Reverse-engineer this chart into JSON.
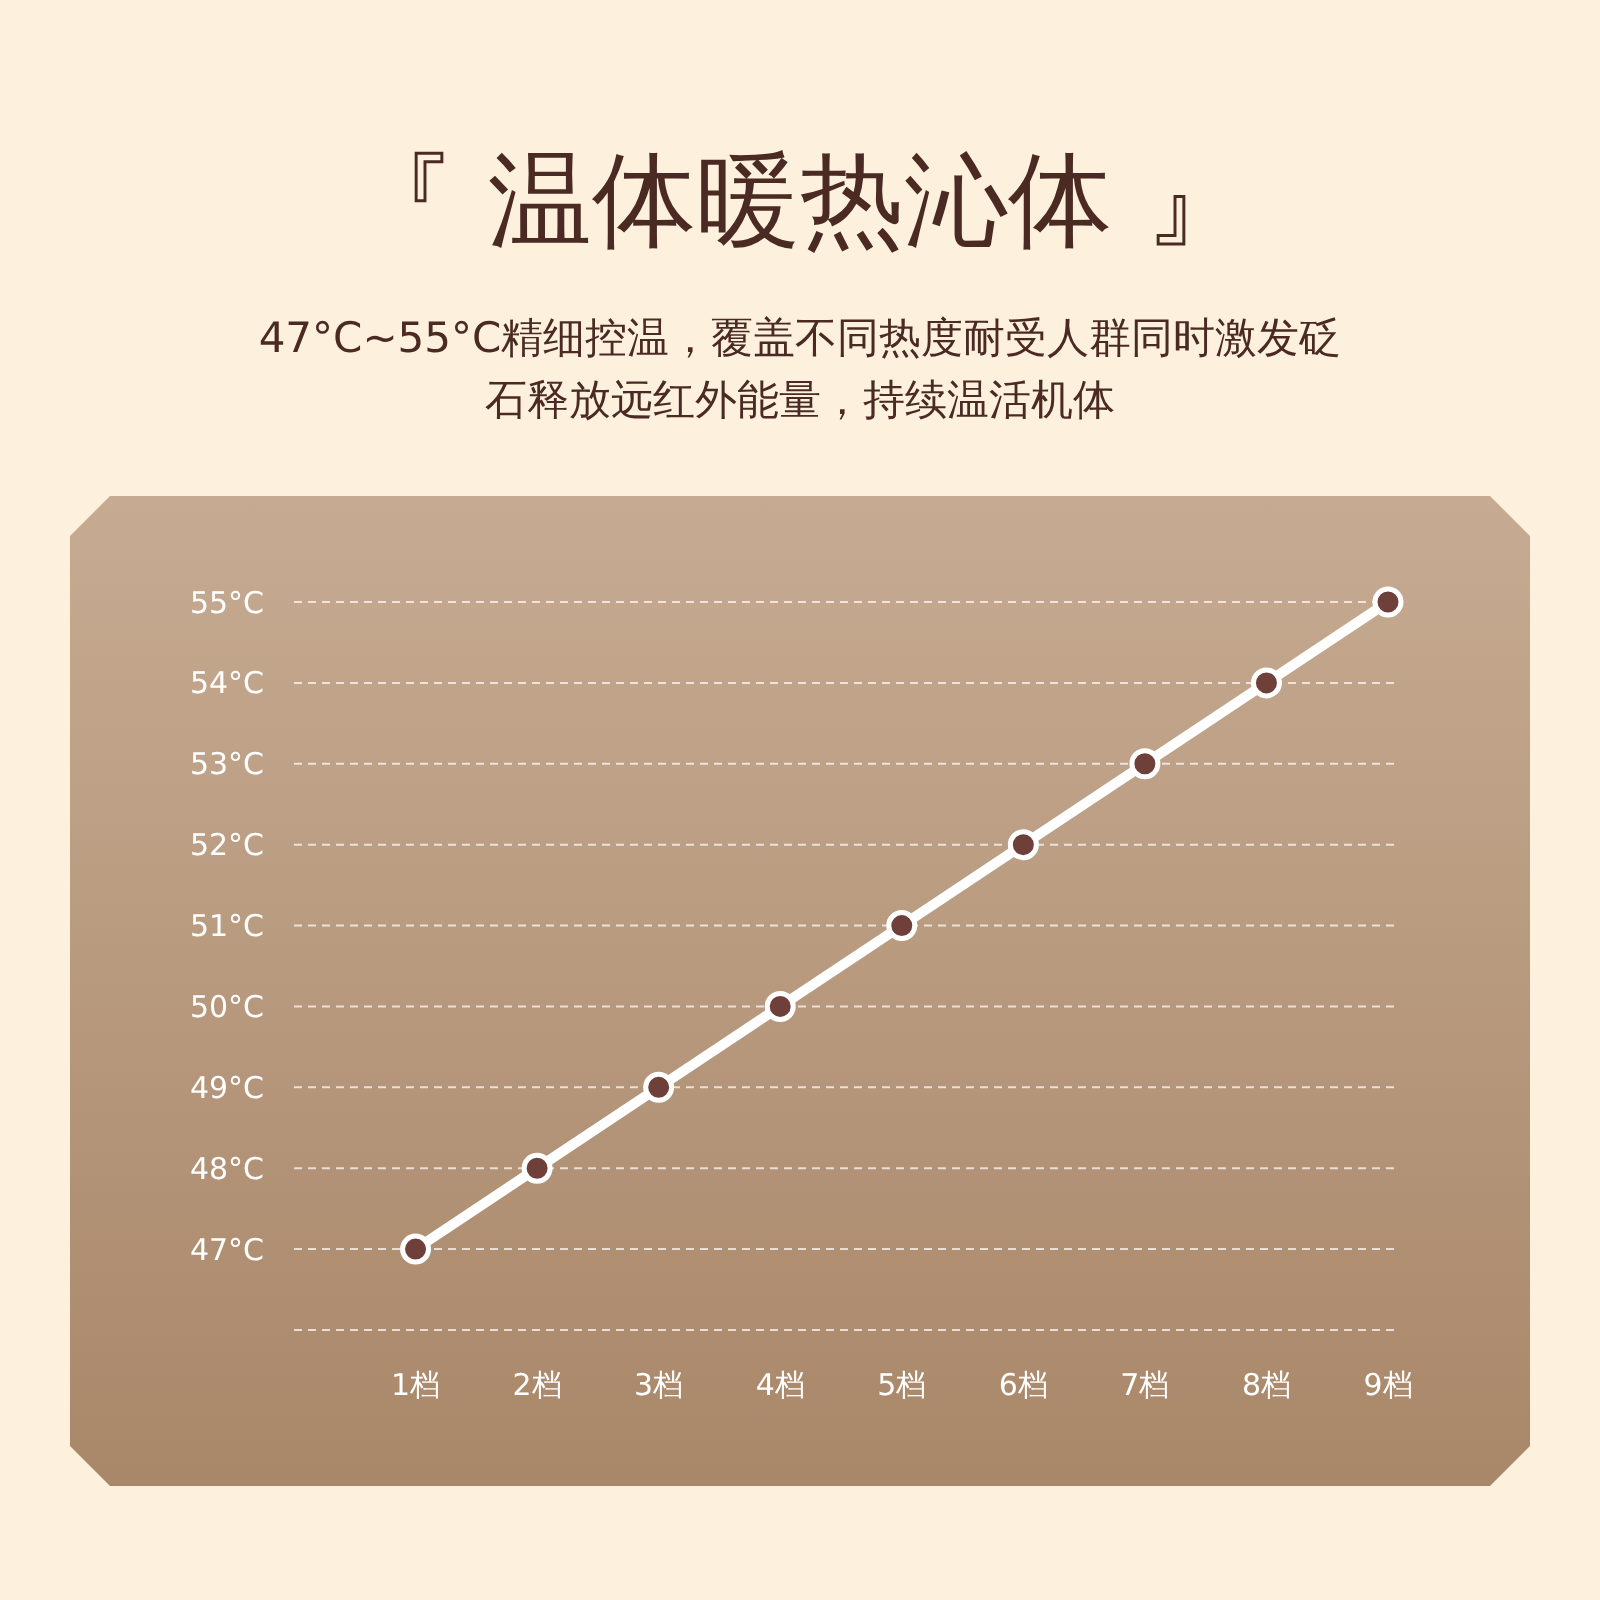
{
  "chart_data": {
    "type": "line",
    "title": "『 温体暖热沁体 』",
    "subtitle": "47°C~55°C精细控温，覆盖不同热度耐受人群同时激发砭石释放远红外能量，持续温活机体",
    "categories": [
      "1档",
      "2档",
      "3档",
      "4档",
      "5档",
      "6档",
      "7档",
      "8档",
      "9档"
    ],
    "series": [
      {
        "color": "#ffffff",
        "values": [
          47,
          48,
          49,
          50,
          51,
          52,
          53,
          54,
          55
        ]
      }
    ],
    "ylim": [
      46,
      55
    ],
    "yticks": [
      {
        "value": 47,
        "label": "47°C"
      },
      {
        "value": 48,
        "label": "48°C"
      },
      {
        "value": 49,
        "label": "49°C"
      },
      {
        "value": 50,
        "label": "50°C"
      },
      {
        "value": 51,
        "label": "51°C"
      },
      {
        "value": 52,
        "label": "52°C"
      },
      {
        "value": 53,
        "label": "53°C"
      },
      {
        "value": 54,
        "label": "54°C"
      },
      {
        "value": 55,
        "label": "55°C"
      }
    ],
    "grid": "y",
    "marker": "circle",
    "line_style": "solid"
  }
}
